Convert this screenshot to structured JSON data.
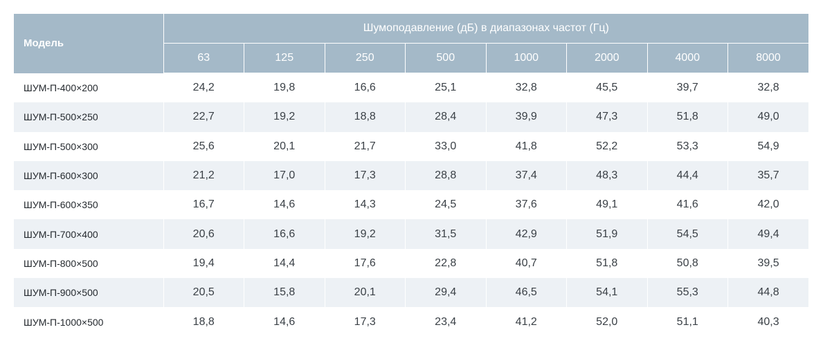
{
  "table": {
    "model_header": "Модель",
    "group_header": "Шумоподавление (дБ) в диапазонах частот (Гц)",
    "frequencies": [
      "63",
      "125",
      "250",
      "500",
      "1000",
      "2000",
      "4000",
      "8000"
    ],
    "rows": [
      {
        "model": "ШУМ-П-400×200",
        "values": [
          "24,2",
          "19,8",
          "16,6",
          "25,1",
          "32,8",
          "45,5",
          "39,7",
          "32,8"
        ]
      },
      {
        "model": "ШУМ-П-500×250",
        "values": [
          "22,7",
          "19,2",
          "18,8",
          "28,4",
          "39,9",
          "47,3",
          "51,8",
          "49,0"
        ]
      },
      {
        "model": "ШУМ-П-500×300",
        "values": [
          "25,6",
          "20,1",
          "21,7",
          "33,0",
          "41,8",
          "52,2",
          "53,3",
          "54,9"
        ]
      },
      {
        "model": "ШУМ-П-600×300",
        "values": [
          "21,2",
          "17,0",
          "17,3",
          "28,8",
          "37,4",
          "48,3",
          "44,4",
          "35,7"
        ]
      },
      {
        "model": "ШУМ-П-600×350",
        "values": [
          "16,7",
          "14,6",
          "14,3",
          "24,5",
          "37,6",
          "49,1",
          "41,6",
          "42,0"
        ]
      },
      {
        "model": "ШУМ-П-700×400",
        "values": [
          "20,6",
          "16,6",
          "19,2",
          "31,5",
          "42,9",
          "51,9",
          "54,5",
          "49,4"
        ]
      },
      {
        "model": "ШУМ-П-800×500",
        "values": [
          "19,4",
          "14,4",
          "17,6",
          "22,8",
          "40,7",
          "51,8",
          "50,8",
          "39,5"
        ]
      },
      {
        "model": "ШУМ-П-900×500",
        "values": [
          "20,5",
          "15,8",
          "20,1",
          "29,4",
          "46,5",
          "54,1",
          "55,3",
          "44,8"
        ]
      },
      {
        "model": "ШУМ-П-1000×500",
        "values": [
          "18,8",
          "14,6",
          "17,3",
          "23,4",
          "41,2",
          "52,0",
          "51,1",
          "40,3"
        ]
      }
    ]
  },
  "colors": {
    "header_bg": "#a4b9c8",
    "header_text": "#ffffff",
    "stripe_bg": "#edf1f5",
    "row_bg": "#ffffff",
    "cell_text": "#3a4046"
  }
}
